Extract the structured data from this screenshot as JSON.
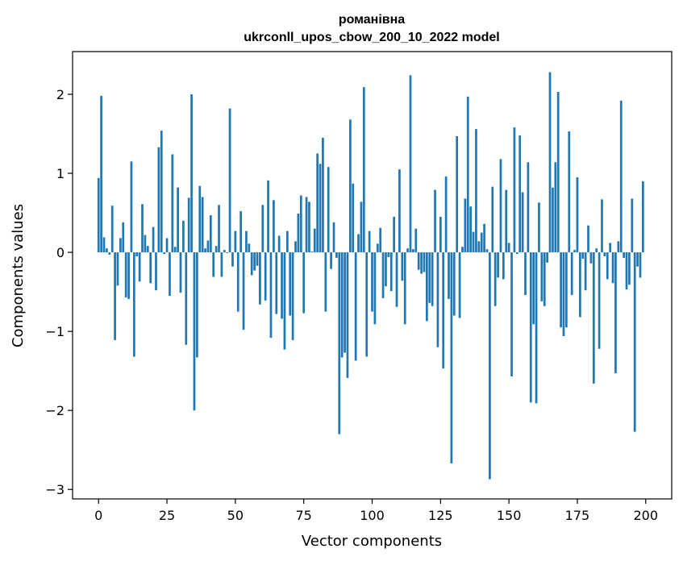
{
  "chart_data": {
    "type": "bar",
    "title": "романівна",
    "subtitle": "ukrconll_upos_cbow_200_10_2022 model",
    "xlabel": "Vector components",
    "ylabel": "Components values",
    "xlim": [
      -9.5,
      209.5
    ],
    "ylim": [
      -3.12,
      2.54
    ],
    "xticks": [
      0,
      25,
      50,
      75,
      100,
      125,
      150,
      175,
      200
    ],
    "yticks": [
      -3,
      -2,
      -1,
      0,
      1,
      2
    ],
    "xtick_labels": [
      "0",
      "25",
      "50",
      "75",
      "100",
      "125",
      "150",
      "175",
      "200"
    ],
    "ytick_labels": [
      "−3",
      "−2",
      "−1",
      "0",
      "1",
      "2"
    ],
    "grid": false,
    "bar_color": "#1f77b4",
    "x": [
      0,
      1,
      2,
      3,
      4,
      5,
      6,
      7,
      8,
      9,
      10,
      11,
      12,
      13,
      14,
      15,
      16,
      17,
      18,
      19,
      20,
      21,
      22,
      23,
      24,
      25,
      26,
      27,
      28,
      29,
      30,
      31,
      32,
      33,
      34,
      35,
      36,
      37,
      38,
      39,
      40,
      41,
      42,
      43,
      44,
      45,
      46,
      47,
      48,
      49,
      50,
      51,
      52,
      53,
      54,
      55,
      56,
      57,
      58,
      59,
      60,
      61,
      62,
      63,
      64,
      65,
      66,
      67,
      68,
      69,
      70,
      71,
      72,
      73,
      74,
      75,
      76,
      77,
      78,
      79,
      80,
      81,
      82,
      83,
      84,
      85,
      86,
      87,
      88,
      89,
      90,
      91,
      92,
      93,
      94,
      95,
      96,
      97,
      98,
      99,
      100,
      101,
      102,
      103,
      104,
      105,
      106,
      107,
      108,
      109,
      110,
      111,
      112,
      113,
      114,
      115,
      116,
      117,
      118,
      119,
      120,
      121,
      122,
      123,
      124,
      125,
      126,
      127,
      128,
      129,
      130,
      131,
      132,
      133,
      134,
      135,
      136,
      137,
      138,
      139,
      140,
      141,
      142,
      143,
      144,
      145,
      146,
      147,
      148,
      149,
      150,
      151,
      152,
      153,
      154,
      155,
      156,
      157,
      158,
      159,
      160,
      161,
      162,
      163,
      164,
      165,
      166,
      167,
      168,
      169,
      170,
      171,
      172,
      173,
      174,
      175,
      176,
      177,
      178,
      179,
      180,
      181,
      182,
      183,
      184,
      185,
      186,
      187,
      188,
      189,
      190,
      191,
      192,
      193,
      194,
      195,
      196,
      197,
      198,
      199
    ],
    "values": [
      0.94,
      1.98,
      0.19,
      0.05,
      -0.03,
      0.59,
      -1.11,
      -0.42,
      0.18,
      0.38,
      -0.57,
      -0.59,
      1.15,
      -1.32,
      -0.05,
      -0.37,
      0.61,
      0.22,
      0.08,
      -0.39,
      0.32,
      -0.48,
      1.33,
      1.54,
      -0.02,
      0.18,
      -0.55,
      1.24,
      0.07,
      0.82,
      -0.51,
      0.4,
      -1.17,
      0.69,
      2.0,
      -2.0,
      -1.33,
      0.84,
      0.7,
      0.05,
      0.15,
      0.47,
      -0.31,
      0.08,
      0.6,
      -0.31,
      0.03,
      -0.01,
      1.82,
      -0.18,
      0.27,
      -0.75,
      0.52,
      -0.98,
      0.27,
      0.11,
      -0.29,
      -0.23,
      -0.17,
      -0.66,
      0.6,
      -0.61,
      0.91,
      -1.08,
      0.66,
      -0.78,
      0.21,
      -0.84,
      -1.23,
      0.27,
      -0.8,
      -1.11,
      0.14,
      0.49,
      0.72,
      -0.77,
      0.7,
      0.64,
      0.01,
      0.3,
      1.25,
      1.12,
      1.45,
      -0.75,
      1.08,
      -0.21,
      0.38,
      -0.07,
      -2.3,
      -1.33,
      -1.27,
      -1.59,
      1.68,
      0.87,
      -1.37,
      0.23,
      0.64,
      2.09,
      -1.32,
      0.27,
      -0.75,
      -0.91,
      0.11,
      0.31,
      -0.58,
      -0.43,
      -0.06,
      -0.49,
      0.45,
      -0.69,
      1.05,
      -0.36,
      -0.91,
      0.05,
      2.24,
      0.04,
      0.3,
      -0.22,
      -0.27,
      -0.25,
      -0.87,
      -0.64,
      -0.68,
      0.79,
      -1.2,
      0.45,
      -1.47,
      0.96,
      -0.59,
      -2.67,
      -0.8,
      1.47,
      -0.83,
      0.07,
      0.68,
      1.97,
      0.58,
      0.26,
      1.56,
      0.14,
      0.25,
      0.36,
      0.04,
      -2.87,
      0.83,
      -0.68,
      -0.32,
      1.18,
      -0.34,
      0.79,
      0.12,
      -1.57,
      1.58,
      -0.02,
      1.48,
      0.76,
      -0.54,
      1.14,
      -1.9,
      -0.91,
      -1.91,
      0.63,
      -0.62,
      -0.68,
      -0.13,
      2.28,
      0.82,
      1.14,
      2.03,
      -0.95,
      -1.06,
      -0.95,
      1.53,
      -0.54,
      0.03,
      0.95,
      -0.82,
      -0.08,
      -0.48,
      0.34,
      -0.14,
      -1.66,
      0.05,
      -1.22,
      0.67,
      -0.05,
      -0.34,
      0.12,
      -0.39,
      -1.53,
      0.14,
      1.92,
      -0.07,
      -0.47,
      -0.41,
      0.68,
      -2.27,
      -0.18,
      -0.32,
      0.9
    ]
  }
}
